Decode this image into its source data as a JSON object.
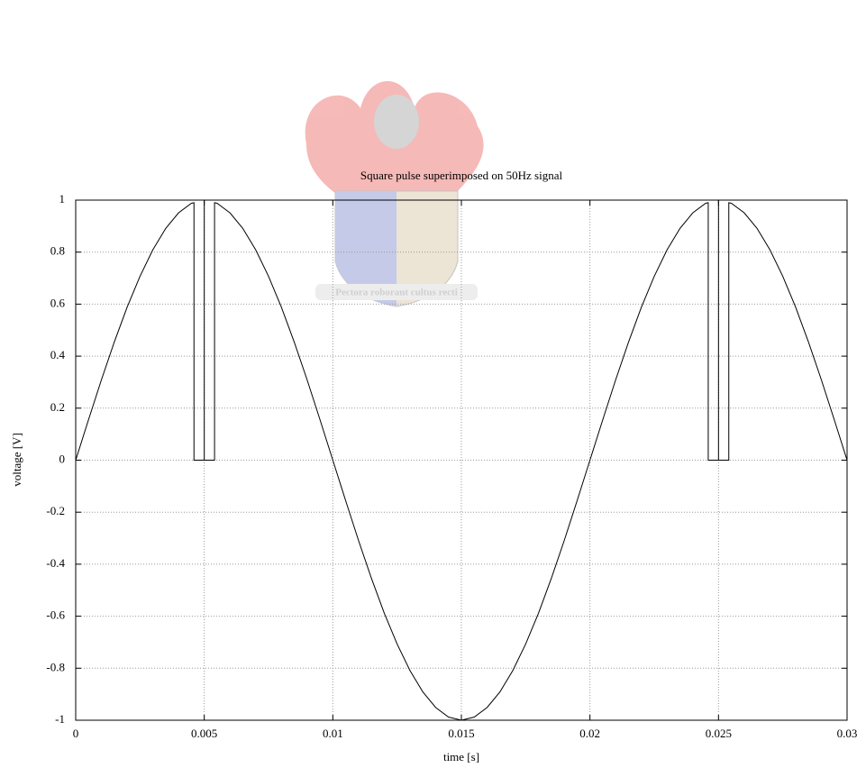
{
  "chart_data": {
    "type": "line",
    "title": "Square pulse superimposed on 50Hz signal",
    "xlabel": "time [s]",
    "ylabel": "voltage [V]",
    "watermark": "Pectora roborant cultus recti",
    "x": [
      0,
      0.0005,
      0.001,
      0.0015,
      0.002,
      0.0025,
      0.003,
      0.0035,
      0.004,
      0.0045,
      0.0046,
      0.0046,
      0.005,
      0.005,
      0.005,
      0.0054,
      0.0054,
      0.0055,
      0.006,
      0.0065,
      0.007,
      0.0075,
      0.008,
      0.0085,
      0.009,
      0.0095,
      0.01,
      0.0105,
      0.011,
      0.0115,
      0.012,
      0.0125,
      0.013,
      0.0135,
      0.014,
      0.0145,
      0.015,
      0.0155,
      0.016,
      0.0165,
      0.017,
      0.0175,
      0.018,
      0.0185,
      0.019,
      0.0195,
      0.02,
      0.0205,
      0.021,
      0.0215,
      0.022,
      0.0225,
      0.023,
      0.0235,
      0.024,
      0.0245,
      0.0246,
      0.0246,
      0.025,
      0.025,
      0.025,
      0.0254,
      0.0254,
      0.0255,
      0.026,
      0.0265,
      0.027,
      0.0275,
      0.028,
      0.0285,
      0.029,
      0.0295,
      0.03
    ],
    "series": [
      {
        "color": "#000000",
        "values": [
          0,
          0.156,
          0.309,
          0.454,
          0.588,
          0.707,
          0.809,
          0.891,
          0.951,
          0.988,
          0.99,
          0,
          0,
          1,
          0,
          0,
          0.99,
          0.988,
          0.951,
          0.891,
          0.809,
          0.707,
          0.588,
          0.454,
          0.309,
          0.156,
          0,
          -0.156,
          -0.309,
          -0.454,
          -0.588,
          -0.707,
          -0.809,
          -0.891,
          -0.951,
          -0.988,
          -1,
          -0.988,
          -0.951,
          -0.891,
          -0.809,
          -0.707,
          -0.588,
          -0.454,
          -0.309,
          -0.156,
          0,
          0.156,
          0.309,
          0.454,
          0.588,
          0.707,
          0.809,
          0.891,
          0.951,
          0.988,
          0.99,
          0,
          0,
          1,
          0,
          0,
          0.99,
          0.988,
          0.951,
          0.891,
          0.809,
          0.707,
          0.588,
          0.454,
          0.309,
          0.156,
          0
        ]
      }
    ],
    "xlim": [
      0,
      0.03
    ],
    "xticks": [
      0,
      0.005,
      0.01,
      0.015,
      0.02,
      0.025,
      0.03
    ],
    "ylim": [
      -1,
      1
    ],
    "yticks": [
      -1,
      -0.8,
      -0.6,
      -0.4,
      -0.2,
      0,
      0.2,
      0.4,
      0.6,
      0.8,
      1
    ],
    "grid": true
  }
}
